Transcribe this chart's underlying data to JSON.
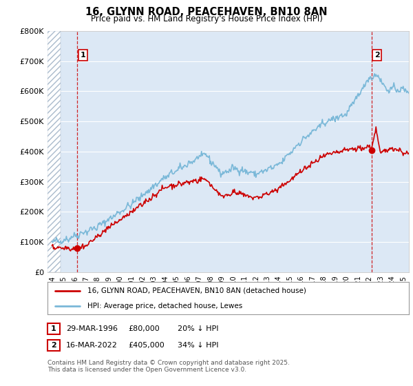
{
  "title": "16, GLYNN ROAD, PEACEHAVEN, BN10 8AN",
  "subtitle": "Price paid vs. HM Land Registry's House Price Index (HPI)",
  "ylim": [
    0,
    800000
  ],
  "yticks": [
    0,
    100000,
    200000,
    300000,
    400000,
    500000,
    600000,
    700000,
    800000
  ],
  "ytick_labels": [
    "£0",
    "£100K",
    "£200K",
    "£300K",
    "£400K",
    "£500K",
    "£600K",
    "£700K",
    "£800K"
  ],
  "xlim_start": 1993.6,
  "xlim_end": 2025.5,
  "hatch_end": 1994.75,
  "sale1_year": 1996.23,
  "sale1_price": 80000,
  "sale2_year": 2022.21,
  "sale2_price": 405000,
  "hpi_color": "#7ab8d8",
  "price_color": "#cc0000",
  "plot_bg_color": "#dce8f5",
  "legend_line1": "16, GLYNN ROAD, PEACEHAVEN, BN10 8AN (detached house)",
  "legend_line2": "HPI: Average price, detached house, Lewes",
  "footnote1": "Contains HM Land Registry data © Crown copyright and database right 2025.",
  "footnote2": "This data is licensed under the Open Government Licence v3.0.",
  "table_row1_num": "1",
  "table_row1_date": "29-MAR-1996",
  "table_row1_price": "£80,000",
  "table_row1_hpi": "20% ↓ HPI",
  "table_row2_num": "2",
  "table_row2_date": "16-MAR-2022",
  "table_row2_price": "£405,000",
  "table_row2_hpi": "34% ↓ HPI"
}
